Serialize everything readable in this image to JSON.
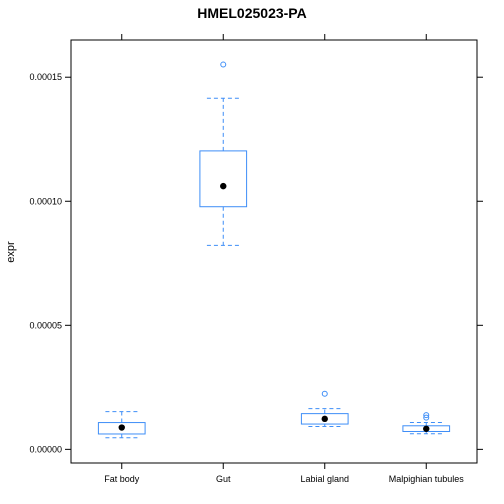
{
  "chart_data": {
    "type": "box",
    "title": "HMEL025023-PA",
    "xlabel": "",
    "ylabel": "expr",
    "ylim": [
      -5.5e-06,
      0.000165
    ],
    "yticks": [
      0,
      5e-05,
      0.0001,
      0.00015
    ],
    "ytick_labels": [
      "0.00000",
      "0.00005",
      "0.00010",
      "0.00015"
    ],
    "grid": false,
    "colors": {
      "box": "#3e8ef7",
      "median": "#000000",
      "frame": "#000000"
    },
    "categories": [
      "Fat body",
      "Gut",
      "Labial gland",
      "Malpighian tubules"
    ],
    "boxes": [
      {
        "category": "Fat body",
        "whisker_low": 4.7e-06,
        "q1": 6.2e-06,
        "median": 8.8e-06,
        "q3": 1.08e-05,
        "whisker_high": 1.52e-05,
        "outliers": []
      },
      {
        "category": "Gut",
        "whisker_low": 8.22e-05,
        "q1": 9.78e-05,
        "median": 0.0001061,
        "q3": 0.0001203,
        "whisker_high": 0.0001415,
        "outliers": [
          0.0001551
        ]
      },
      {
        "category": "Labial gland",
        "whisker_low": 9.2e-06,
        "q1": 1.02e-05,
        "median": 1.23e-05,
        "q3": 1.44e-05,
        "whisker_high": 1.64e-05,
        "outliers": [
          2.24e-05
        ]
      },
      {
        "category": "Malpighian tubules",
        "whisker_low": 6.3e-06,
        "q1": 7.2e-06,
        "median": 8.3e-06,
        "q3": 9.5e-06,
        "whisker_high": 1.08e-05,
        "outliers": [
          1.28e-05,
          1.38e-05
        ]
      }
    ]
  }
}
